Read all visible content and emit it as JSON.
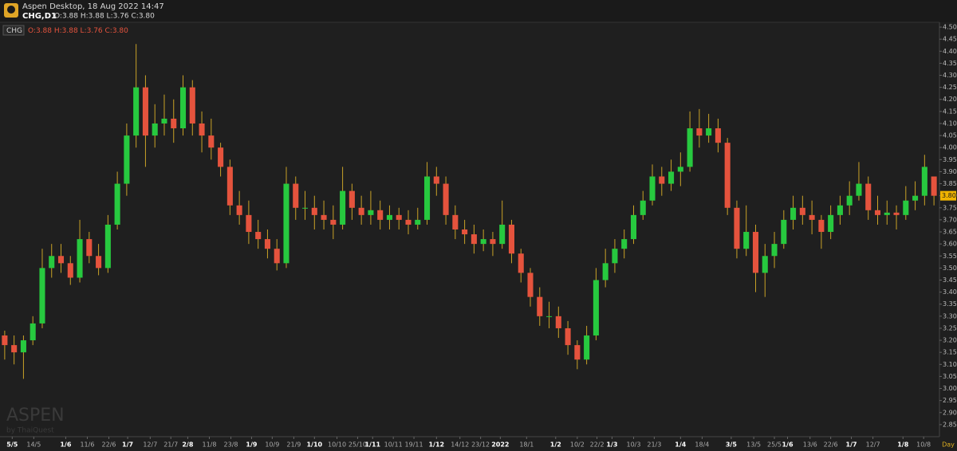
{
  "header": {
    "app": "Aspen Desktop, 18 Aug 2022 14:47",
    "symbol": "CHG,D1",
    "quote": "O:3.88 H:3.88 L:3.76 C:3.80"
  },
  "watermark": {
    "brand": "ASPEN",
    "by": "by ThaiQuest"
  },
  "chart_data": {
    "type": "candlestick",
    "legend_symbol": "CHG",
    "legend_quote": "O:3.88 H:3.88 L:3.76 C:3.80",
    "x_unit": "Day",
    "last_price_label": "3.80",
    "up_color": "#27c93f",
    "down_color": "#e5533d",
    "wick_color": "#c9a227",
    "ylim": [
      2.8,
      4.52
    ],
    "yticks": [
      {
        "value": 4.5,
        "label": "4.50"
      },
      4.45,
      {
        "value": 4.4,
        "label": "4.40"
      },
      4.35,
      {
        "value": 4.3,
        "label": "4.30"
      },
      4.25,
      {
        "value": 4.2,
        "label": "4.20"
      },
      4.15,
      {
        "value": 4.1,
        "label": "4.10"
      },
      4.05,
      {
        "value": 4,
        "label": "4.00"
      },
      3.95,
      {
        "value": 3.9,
        "label": "3.90"
      },
      3.85,
      {
        "value": 3.8,
        "label": "3.80"
      },
      3.75,
      {
        "value": 3.7,
        "label": "3.70"
      },
      3.65,
      {
        "value": 3.6,
        "label": "3.60"
      },
      3.55,
      {
        "value": 3.5,
        "label": "3.50"
      },
      3.45,
      {
        "value": 3.4,
        "label": "3.40"
      },
      3.35,
      {
        "value": 3.3,
        "label": "3.30"
      },
      3.25,
      {
        "value": 3.2,
        "label": "3.20"
      },
      3.15,
      {
        "value": 3.1,
        "label": "3.10"
      },
      3.05,
      {
        "value": 3,
        "label": "3.00"
      },
      2.95,
      {
        "value": 2.9,
        "label": "2.90"
      },
      2.85
    ],
    "xticks": [
      {
        "value": 0.8,
        "label": "5/5"
      },
      {
        "value": 3.1,
        "label": "14/5"
      },
      {
        "value": 6.5,
        "label": "1/6"
      },
      {
        "value": 8.8,
        "label": "11/6"
      },
      {
        "value": 11.1,
        "label": "22/6"
      },
      {
        "value": 13.1,
        "label": "1/7"
      },
      {
        "value": 15.5,
        "label": "12/7"
      },
      {
        "value": 17.7,
        "label": "21/7"
      },
      {
        "value": 19.5,
        "label": "2/8"
      },
      {
        "value": 21.8,
        "label": "11/8"
      },
      {
        "value": 24.1,
        "label": "23/8"
      },
      {
        "value": 26.3,
        "label": "1/9"
      },
      {
        "value": 28.5,
        "label": "10/9"
      },
      {
        "value": 30.8,
        "label": "21/9"
      },
      {
        "value": 33.0,
        "label": "1/10"
      },
      {
        "value": 35.4,
        "label": "10/10"
      },
      {
        "value": 37.6,
        "label": "25/10"
      },
      {
        "value": 39.2,
        "label": "1/11"
      },
      {
        "value": 41.4,
        "label": "10/11"
      },
      {
        "value": 43.6,
        "label": "19/11"
      },
      {
        "value": 46.0,
        "label": "1/12"
      },
      {
        "value": 48.5,
        "label": "14/12"
      },
      {
        "value": 50.7,
        "label": "23/12"
      },
      {
        "value": 52.8,
        "label": "2022"
      },
      {
        "value": 55.6,
        "label": "18/1"
      },
      {
        "value": 58.7,
        "label": "1/2"
      },
      {
        "value": 61.0,
        "label": "10/2"
      },
      {
        "value": 63.1,
        "label": "22/2"
      },
      {
        "value": 64.7,
        "label": "1/3"
      },
      {
        "value": 67.0,
        "label": "10/3"
      },
      {
        "value": 69.2,
        "label": "21/3"
      },
      {
        "value": 72.0,
        "label": "1/4"
      },
      {
        "value": 74.3,
        "label": "18/4"
      },
      {
        "value": 77.4,
        "label": "3/5"
      },
      {
        "value": 79.8,
        "label": "13/5"
      },
      {
        "value": 82.0,
        "label": "25/5"
      },
      {
        "value": 83.4,
        "label": "1/6"
      },
      {
        "value": 85.8,
        "label": "13/6"
      },
      {
        "value": 88.0,
        "label": "22/6"
      },
      {
        "value": 90.2,
        "label": "1/7"
      },
      {
        "value": 92.5,
        "label": "12/7"
      },
      {
        "value": 95.7,
        "label": "1/8"
      },
      {
        "value": 97.9,
        "label": "10/8"
      }
    ],
    "ohlc": [
      [
        3.22,
        3.24,
        3.12,
        3.18
      ],
      [
        3.18,
        3.22,
        3.1,
        3.15
      ],
      [
        3.15,
        3.22,
        3.04,
        3.2
      ],
      [
        3.2,
        3.3,
        3.18,
        3.27
      ],
      [
        3.27,
        3.58,
        3.25,
        3.5
      ],
      [
        3.5,
        3.6,
        3.46,
        3.55
      ],
      [
        3.55,
        3.6,
        3.48,
        3.52
      ],
      [
        3.52,
        3.55,
        3.43,
        3.46
      ],
      [
        3.46,
        3.7,
        3.44,
        3.62
      ],
      [
        3.62,
        3.65,
        3.52,
        3.55
      ],
      [
        3.55,
        3.6,
        3.47,
        3.5
      ],
      [
        3.5,
        3.72,
        3.48,
        3.68
      ],
      [
        3.68,
        3.9,
        3.66,
        3.85
      ],
      [
        3.85,
        4.1,
        3.8,
        4.05
      ],
      [
        4.05,
        4.43,
        4,
        4.25
      ],
      [
        4.25,
        4.3,
        3.92,
        4.05
      ],
      [
        4.05,
        4.18,
        4,
        4.1
      ],
      [
        4.1,
        4.22,
        4.05,
        4.12
      ],
      [
        4.12,
        4.2,
        4.02,
        4.08
      ],
      [
        4.08,
        4.3,
        4.05,
        4.25
      ],
      [
        4.25,
        4.28,
        4.05,
        4.1
      ],
      [
        4.1,
        4.15,
        3.98,
        4.05
      ],
      [
        4.05,
        4.12,
        3.95,
        4
      ],
      [
        4,
        4.02,
        3.88,
        3.92
      ],
      [
        3.92,
        3.95,
        3.72,
        3.76
      ],
      [
        3.76,
        3.82,
        3.68,
        3.72
      ],
      [
        3.72,
        3.78,
        3.6,
        3.65
      ],
      [
        3.65,
        3.7,
        3.58,
        3.62
      ],
      [
        3.62,
        3.66,
        3.54,
        3.58
      ],
      [
        3.58,
        3.62,
        3.49,
        3.52
      ],
      [
        3.52,
        3.92,
        3.5,
        3.85
      ],
      [
        3.85,
        3.88,
        3.7,
        3.75
      ],
      [
        3.75,
        3.82,
        3.7,
        3.75
      ],
      [
        3.75,
        3.8,
        3.66,
        3.72
      ],
      [
        3.72,
        3.78,
        3.66,
        3.7
      ],
      [
        3.7,
        3.76,
        3.62,
        3.68
      ],
      [
        3.68,
        3.92,
        3.66,
        3.82
      ],
      [
        3.82,
        3.85,
        3.7,
        3.75
      ],
      [
        3.75,
        3.8,
        3.68,
        3.72
      ],
      [
        3.72,
        3.82,
        3.68,
        3.74
      ],
      [
        3.74,
        3.78,
        3.66,
        3.7
      ],
      [
        3.7,
        3.76,
        3.66,
        3.72
      ],
      [
        3.72,
        3.75,
        3.66,
        3.7
      ],
      [
        3.7,
        3.74,
        3.64,
        3.68
      ],
      [
        3.68,
        3.75,
        3.66,
        3.7
      ],
      [
        3.7,
        3.94,
        3.68,
        3.88
      ],
      [
        3.88,
        3.92,
        3.8,
        3.85
      ],
      [
        3.85,
        3.88,
        3.68,
        3.72
      ],
      [
        3.72,
        3.76,
        3.62,
        3.66
      ],
      [
        3.66,
        3.7,
        3.6,
        3.64
      ],
      [
        3.64,
        3.68,
        3.56,
        3.6
      ],
      [
        3.6,
        3.66,
        3.57,
        3.62
      ],
      [
        3.62,
        3.65,
        3.55,
        3.6
      ],
      [
        3.6,
        3.78,
        3.58,
        3.68
      ],
      [
        3.68,
        3.7,
        3.52,
        3.56
      ],
      [
        3.56,
        3.58,
        3.44,
        3.48
      ],
      [
        3.48,
        3.5,
        3.34,
        3.38
      ],
      [
        3.38,
        3.42,
        3.26,
        3.3
      ],
      [
        3.3,
        3.36,
        3.25,
        3.3
      ],
      [
        3.3,
        3.34,
        3.21,
        3.25
      ],
      [
        3.25,
        3.28,
        3.14,
        3.18
      ],
      [
        3.18,
        3.2,
        3.08,
        3.12
      ],
      [
        3.12,
        3.26,
        3.1,
        3.22
      ],
      [
        3.22,
        3.5,
        3.2,
        3.45
      ],
      [
        3.45,
        3.58,
        3.42,
        3.52
      ],
      [
        3.52,
        3.62,
        3.48,
        3.58
      ],
      [
        3.58,
        3.66,
        3.54,
        3.62
      ],
      [
        3.62,
        3.76,
        3.6,
        3.72
      ],
      [
        3.72,
        3.82,
        3.7,
        3.78
      ],
      [
        3.78,
        3.93,
        3.76,
        3.88
      ],
      [
        3.88,
        3.92,
        3.8,
        3.85
      ],
      [
        3.85,
        3.95,
        3.82,
        3.9
      ],
      [
        3.9,
        3.98,
        3.84,
        3.92
      ],
      [
        3.92,
        4.15,
        3.9,
        4.08
      ],
      [
        4.08,
        4.16,
        4,
        4.05
      ],
      [
        4.05,
        4.14,
        4.02,
        4.08
      ],
      [
        4.08,
        4.12,
        3.98,
        4.02
      ],
      [
        4.02,
        4.04,
        3.72,
        3.75
      ],
      [
        3.75,
        3.78,
        3.54,
        3.58
      ],
      [
        3.58,
        3.76,
        3.55,
        3.65
      ],
      [
        3.65,
        3.68,
        3.4,
        3.48
      ],
      [
        3.48,
        3.6,
        3.38,
        3.55
      ],
      [
        3.55,
        3.65,
        3.5,
        3.6
      ],
      [
        3.6,
        3.74,
        3.58,
        3.7
      ],
      [
        3.7,
        3.8,
        3.66,
        3.75
      ],
      [
        3.75,
        3.8,
        3.68,
        3.72
      ],
      [
        3.72,
        3.78,
        3.64,
        3.7
      ],
      [
        3.7,
        3.72,
        3.58,
        3.65
      ],
      [
        3.65,
        3.76,
        3.62,
        3.72
      ],
      [
        3.72,
        3.8,
        3.68,
        3.76
      ],
      [
        3.76,
        3.86,
        3.72,
        3.8
      ],
      [
        3.8,
        3.94,
        3.78,
        3.85
      ],
      [
        3.85,
        3.88,
        3.7,
        3.74
      ],
      [
        3.74,
        3.8,
        3.68,
        3.72
      ],
      [
        3.72,
        3.78,
        3.68,
        3.73
      ],
      [
        3.73,
        3.76,
        3.66,
        3.72
      ],
      [
        3.72,
        3.84,
        3.7,
        3.78
      ],
      [
        3.78,
        3.86,
        3.74,
        3.8
      ],
      [
        3.8,
        3.97,
        3.76,
        3.92
      ],
      [
        3.88,
        3.88,
        3.76,
        3.8
      ]
    ]
  }
}
